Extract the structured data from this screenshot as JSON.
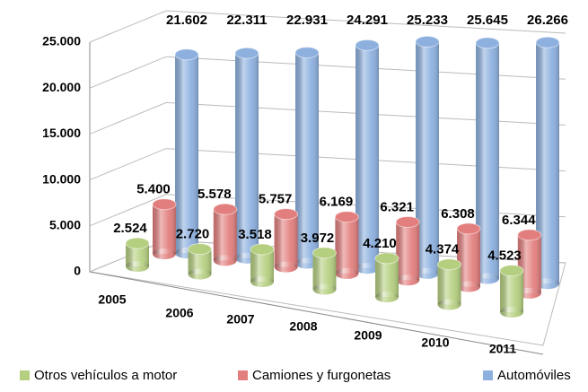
{
  "chart_data": {
    "type": "bar3d",
    "categories": [
      "2005",
      "2006",
      "2007",
      "2008",
      "2009",
      "2010",
      "2011"
    ],
    "series": [
      {
        "name": "Otros vehículos a motor",
        "color": "#b5cf80",
        "values": [
          2524,
          2720,
          3518,
          3972,
          4210,
          4374,
          4523
        ],
        "value_labels": [
          "2.524",
          "2.720",
          "3.518",
          "3.972",
          "4.210",
          "4.374",
          "4.523"
        ]
      },
      {
        "name": "Camiones y furgonetas",
        "color": "#e27f7e",
        "values": [
          5400,
          5578,
          5757,
          6169,
          6321,
          6308,
          6344
        ],
        "value_labels": [
          "5.400",
          "5.578",
          "5.757",
          "6.169",
          "6.321",
          "6.308",
          "6.344"
        ]
      },
      {
        "name": "Automóviles",
        "color": "#8db0df",
        "values": [
          21602,
          22311,
          22931,
          24291,
          25233,
          25645,
          26266
        ],
        "value_labels": [
          "21.602",
          "22.311",
          "22.931",
          "24.291",
          "25.233",
          "25.645",
          "26.266"
        ]
      }
    ],
    "ylim": [
      0,
      25000
    ],
    "yticks": [
      {
        "value": 0,
        "label": "0"
      },
      {
        "value": 5000,
        "label": "5.000"
      },
      {
        "value": 10000,
        "label": "10.000"
      },
      {
        "value": 15000,
        "label": "15.000"
      },
      {
        "value": 20000,
        "label": "20.000"
      },
      {
        "value": 25000,
        "label": "25.000"
      }
    ],
    "grid": true,
    "legend": "bottom"
  }
}
